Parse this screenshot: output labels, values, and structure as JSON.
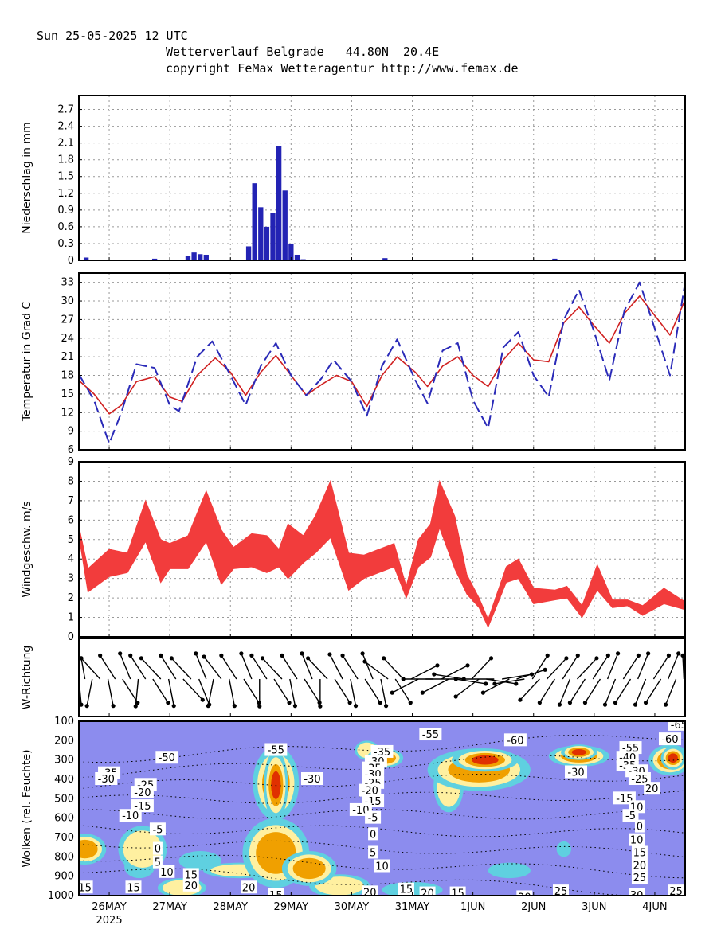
{
  "header": {
    "date_line": "Sun 25-05-2025 12 UTC",
    "location_line": "Wetterverlauf Belgrade   44.80N  20.4E",
    "copyright_line": "copyright FeMax Wetteragentur http://www.femax.de"
  },
  "colors": {
    "precip_bar": "#2323b4",
    "temp_solid": "#d02020",
    "temp_dashed": "#2a2ab8",
    "wind_band": "#f23c3c",
    "cloud_bg": "#8c8cee",
    "cloud_thin": "#5fd0e0",
    "cloud_mid": "#fff0a0",
    "cloud_thick": "#f0a000",
    "cloud_max": "#e03000"
  },
  "x_axis": {
    "tick_labels": [
      "26MAY",
      "27MAY",
      "28MAY",
      "29MAY",
      "30MAY",
      "31MAY",
      "1JUN",
      "2JUN",
      "3JUN",
      "4JUN"
    ],
    "year_label": "2025",
    "range_days": [
      0.5,
      10.5
    ]
  },
  "chart_data": [
    {
      "type": "bar",
      "ylabel": "Niederschlag in mm",
      "yticks": [
        "0",
        "0.3",
        "0.6",
        "0.9",
        "1.2",
        "1.5",
        "1.8",
        "2.1",
        "2.4",
        "2.7"
      ],
      "ylim": [
        0,
        2.95
      ],
      "grid": true,
      "bar_width_days": 0.083,
      "x": [
        0.62,
        1.75,
        2.3,
        2.4,
        2.5,
        2.6,
        3.3,
        3.4,
        3.5,
        3.6,
        3.7,
        3.8,
        3.9,
        4.0,
        4.1,
        4.2,
        5.55,
        8.35
      ],
      "values": [
        0.05,
        0.03,
        0.08,
        0.14,
        0.11,
        0.1,
        0.25,
        1.38,
        0.95,
        0.6,
        0.85,
        2.05,
        1.25,
        0.3,
        0.1,
        0.02,
        0.04,
        0.03
      ]
    },
    {
      "type": "line",
      "ylabel": "Temperatur in Grad C",
      "yticks": [
        "6",
        "9",
        "12",
        "15",
        "18",
        "21",
        "24",
        "27",
        "30",
        "33"
      ],
      "ylim": [
        6,
        34.5
      ],
      "grid": true,
      "series": [
        {
          "style": "solid",
          "points": [
            [
              0.5,
              17.2
            ],
            [
              0.75,
              15
            ],
            [
              1,
              11.8
            ],
            [
              1.2,
              13.2
            ],
            [
              1.45,
              17
            ],
            [
              1.75,
              17.8
            ],
            [
              2,
              14.5
            ],
            [
              2.2,
              13.8
            ],
            [
              2.45,
              18
            ],
            [
              2.75,
              20.8
            ],
            [
              3,
              18.5
            ],
            [
              3.25,
              14.8
            ],
            [
              3.5,
              18.5
            ],
            [
              3.75,
              21.2
            ],
            [
              4,
              18
            ],
            [
              4.25,
              14.8
            ],
            [
              4.5,
              16.5
            ],
            [
              4.75,
              18
            ],
            [
              5,
              17
            ],
            [
              5.25,
              13
            ],
            [
              5.5,
              18
            ],
            [
              5.75,
              21
            ],
            [
              6.05,
              18.5
            ],
            [
              6.25,
              16.2
            ],
            [
              6.5,
              19.5
            ],
            [
              6.75,
              21
            ],
            [
              7,
              18
            ],
            [
              7.25,
              16.2
            ],
            [
              7.5,
              20.5
            ],
            [
              7.75,
              23.2
            ],
            [
              8,
              20.5
            ],
            [
              8.25,
              20.2
            ],
            [
              8.5,
              26.5
            ],
            [
              8.75,
              29
            ],
            [
              9,
              26
            ],
            [
              9.25,
              23.2
            ],
            [
              9.5,
              28
            ],
            [
              9.75,
              30.8
            ],
            [
              10.05,
              27
            ],
            [
              10.25,
              24.5
            ],
            [
              10.5,
              30.2
            ]
          ]
        },
        {
          "style": "dashed",
          "points": [
            [
              0.5,
              18.2
            ],
            [
              0.75,
              14
            ],
            [
              1,
              7
            ],
            [
              1.2,
              12
            ],
            [
              1.45,
              19.8
            ],
            [
              1.75,
              19.2
            ],
            [
              2,
              13.2
            ],
            [
              2.15,
              12.2
            ],
            [
              2.45,
              21
            ],
            [
              2.7,
              23.5
            ],
            [
              3,
              18
            ],
            [
              3.25,
              13.2
            ],
            [
              3.5,
              19.5
            ],
            [
              3.75,
              23.2
            ],
            [
              4,
              18
            ],
            [
              4.25,
              14.8
            ],
            [
              4.5,
              17.5
            ],
            [
              4.7,
              20.5
            ],
            [
              5,
              17
            ],
            [
              5.25,
              11.5
            ],
            [
              5.5,
              19.5
            ],
            [
              5.75,
              23.8
            ],
            [
              6.05,
              17.2
            ],
            [
              6.25,
              13.5
            ],
            [
              6.5,
              22
            ],
            [
              6.75,
              23.2
            ],
            [
              7,
              14
            ],
            [
              7.25,
              9.5
            ],
            [
              7.5,
              22.5
            ],
            [
              7.75,
              25
            ],
            [
              8,
              18
            ],
            [
              8.25,
              14.5
            ],
            [
              8.5,
              27
            ],
            [
              8.75,
              31.8
            ],
            [
              9,
              25
            ],
            [
              9.25,
              17.2
            ],
            [
              9.5,
              28.5
            ],
            [
              9.75,
              33
            ],
            [
              10.05,
              24
            ],
            [
              10.25,
              18
            ],
            [
              10.5,
              33
            ]
          ]
        }
      ]
    },
    {
      "type": "area",
      "ylabel": "Windgeschw. m/s",
      "yticks": [
        "0",
        "1",
        "2",
        "3",
        "4",
        "5",
        "6",
        "7",
        "8",
        "9"
      ],
      "ylim": [
        0,
        9
      ],
      "grid": true,
      "x": [
        0.5,
        0.65,
        1,
        1.3,
        1.6,
        1.85,
        2,
        2.3,
        2.6,
        2.85,
        3.05,
        3.35,
        3.6,
        3.8,
        3.95,
        4.2,
        4.4,
        4.65,
        4.95,
        5.2,
        5.45,
        5.7,
        5.9,
        6.1,
        6.3,
        6.45,
        6.7,
        6.9,
        7.1,
        7.25,
        7.55,
        7.75,
        8,
        8.35,
        8.55,
        8.8,
        9.05,
        9.3,
        9.55,
        9.8,
        10.15,
        10.5
      ],
      "upper": [
        5.7,
        3.5,
        4.5,
        4.3,
        7,
        5,
        4.8,
        5.2,
        7.5,
        5.5,
        4.6,
        5.3,
        5.2,
        4.5,
        5.8,
        5.2,
        6.2,
        8,
        4.3,
        4.2,
        4.5,
        4.8,
        2.6,
        5,
        5.8,
        8,
        6.2,
        3.2,
        2,
        0.9,
        3.6,
        4,
        2.5,
        2.4,
        2.6,
        1.6,
        3.7,
        1.9,
        1.9,
        1.6,
        2.5,
        1.8
      ],
      "lower": [
        5.2,
        2.3,
        3.1,
        3.3,
        4.9,
        2.8,
        3.5,
        3.5,
        4.9,
        2.7,
        3.5,
        3.6,
        3.3,
        3.6,
        3,
        3.8,
        4.3,
        5.1,
        2.4,
        3,
        3.3,
        3.6,
        2,
        3.6,
        4.1,
        5.6,
        3.5,
        2.2,
        1.5,
        0.5,
        2.8,
        3,
        1.7,
        1.9,
        2,
        1,
        2.4,
        1.5,
        1.6,
        1.1,
        1.7,
        1.4
      ]
    },
    {
      "type": "scatter",
      "ylabel": "W-Richtung",
      "arrows": [
        [
          0.5,
          200
        ],
        [
          0.6,
          320
        ],
        [
          0.72,
          190
        ],
        [
          0.85,
          320
        ],
        [
          0.98,
          170
        ],
        [
          1.1,
          330
        ],
        [
          1.22,
          150
        ],
        [
          1.35,
          340
        ],
        [
          1.48,
          185
        ],
        [
          1.6,
          330
        ],
        [
          1.72,
          150
        ],
        [
          1.85,
          320
        ],
        [
          1.98,
          170
        ],
        [
          2.1,
          330
        ],
        [
          2.22,
          140
        ],
        [
          2.35,
          320
        ],
        [
          2.48,
          160
        ],
        [
          2.6,
          340
        ],
        [
          2.72,
          190
        ],
        [
          2.85,
          325
        ],
        [
          2.98,
          170
        ],
        [
          3.1,
          330
        ],
        [
          3.22,
          150
        ],
        [
          3.35,
          340
        ],
        [
          3.48,
          180
        ],
        [
          3.6,
          330
        ],
        [
          3.72,
          150
        ],
        [
          3.85,
          320
        ],
        [
          3.98,
          170
        ],
        [
          4.1,
          330
        ],
        [
          4.22,
          150
        ],
        [
          4.35,
          340
        ],
        [
          4.48,
          180
        ],
        [
          4.6,
          320
        ],
        [
          4.72,
          150
        ],
        [
          4.85,
          335
        ],
        [
          4.98,
          170
        ],
        [
          5.1,
          330
        ],
        [
          5.22,
          150
        ],
        [
          5.35,
          340
        ],
        [
          5.48,
          170
        ],
        [
          5.6,
          310
        ],
        [
          5.72,
          150
        ],
        [
          5.85,
          320
        ],
        [
          5.98,
          60
        ],
        [
          6.1,
          240
        ],
        [
          6.22,
          90
        ],
        [
          6.35,
          270
        ],
        [
          6.48,
          60
        ],
        [
          6.6,
          240
        ],
        [
          6.72,
          100
        ],
        [
          6.85,
          280
        ],
        [
          6.98,
          40
        ],
        [
          7.1,
          230
        ],
        [
          7.22,
          100
        ],
        [
          7.35,
          270
        ],
        [
          7.48,
          80
        ],
        [
          7.6,
          240
        ],
        [
          7.72,
          70
        ],
        [
          7.85,
          260
        ],
        [
          7.98,
          30
        ],
        [
          8.1,
          220
        ],
        [
          8.22,
          40
        ],
        [
          8.35,
          210
        ],
        [
          8.48,
          30
        ],
        [
          8.6,
          200
        ],
        [
          8.72,
          40
        ],
        [
          8.85,
          210
        ],
        [
          8.98,
          30
        ],
        [
          9.1,
          210
        ],
        [
          9.22,
          20
        ],
        [
          9.35,
          200
        ],
        [
          9.48,
          30
        ],
        [
          9.6,
          210
        ],
        [
          9.72,
          20
        ],
        [
          9.85,
          200
        ],
        [
          9.98,
          30
        ],
        [
          10.1,
          210
        ],
        [
          10.22,
          20
        ],
        [
          10.35,
          200
        ],
        [
          10.48,
          30
        ]
      ]
    },
    {
      "type": "heatmap",
      "ylabel": "Wolken (rel. Feuchte)",
      "yticks": [
        "100",
        "200",
        "300",
        "400",
        "500",
        "600",
        "700",
        "800",
        "900",
        "1000"
      ],
      "ylim": [
        100,
        1000
      ],
      "contour_labels": [
        {
          "x": 1.95,
          "p": 290,
          "text": "-50"
        },
        {
          "x": 1.0,
          "p": 370,
          "text": "-35"
        },
        {
          "x": 0.95,
          "p": 400,
          "text": "-30"
        },
        {
          "x": 1.6,
          "p": 430,
          "text": "-25"
        },
        {
          "x": 1.55,
          "p": 470,
          "text": "-20"
        },
        {
          "x": 1.55,
          "p": 540,
          "text": "-15"
        },
        {
          "x": 1.35,
          "p": 590,
          "text": "-10"
        },
        {
          "x": 1.8,
          "p": 660,
          "text": "-5"
        },
        {
          "x": 1.8,
          "p": 760,
          "text": "0"
        },
        {
          "x": 1.8,
          "p": 830,
          "text": "5"
        },
        {
          "x": 1.95,
          "p": 880,
          "text": "10"
        },
        {
          "x": 2.35,
          "p": 895,
          "text": "15"
        },
        {
          "x": 2.35,
          "p": 950,
          "text": "20"
        },
        {
          "x": 0.6,
          "p": 960,
          "text": "15"
        },
        {
          "x": 1.4,
          "p": 960,
          "text": "15"
        },
        {
          "x": 3.3,
          "p": 960,
          "text": "20"
        },
        {
          "x": 3.75,
          "p": 1000,
          "text": "15"
        },
        {
          "x": 3.75,
          "p": 250,
          "text": "-55"
        },
        {
          "x": 4.35,
          "p": 400,
          "text": "-30"
        },
        {
          "x": 5.5,
          "p": 260,
          "text": "-35"
        },
        {
          "x": 5.4,
          "p": 310,
          "text": "-30"
        },
        {
          "x": 5.35,
          "p": 345,
          "text": "-35"
        },
        {
          "x": 5.35,
          "p": 375,
          "text": "-30"
        },
        {
          "x": 5.35,
          "p": 420,
          "text": "-25"
        },
        {
          "x": 5.3,
          "p": 460,
          "text": "-20"
        },
        {
          "x": 5.35,
          "p": 515,
          "text": "-15"
        },
        {
          "x": 5.15,
          "p": 560,
          "text": "-10"
        },
        {
          "x": 5.35,
          "p": 600,
          "text": "-5"
        },
        {
          "x": 5.35,
          "p": 685,
          "text": "0"
        },
        {
          "x": 5.35,
          "p": 780,
          "text": "5"
        },
        {
          "x": 5.5,
          "p": 850,
          "text": "10"
        },
        {
          "x": 5.3,
          "p": 985,
          "text": "20"
        },
        {
          "x": 5.9,
          "p": 970,
          "text": "15"
        },
        {
          "x": 6.25,
          "p": 990,
          "text": "20"
        },
        {
          "x": 6.75,
          "p": 990,
          "text": "15"
        },
        {
          "x": 6.3,
          "p": 170,
          "text": "-55"
        },
        {
          "x": 7.7,
          "p": 200,
          "text": "-60"
        },
        {
          "x": 8.7,
          "p": 365,
          "text": "-30"
        },
        {
          "x": 7.85,
          "p": 1010,
          "text": "20"
        },
        {
          "x": 8.45,
          "p": 980,
          "text": "25"
        },
        {
          "x": 10.25,
          "p": 195,
          "text": "-60"
        },
        {
          "x": 9.6,
          "p": 240,
          "text": "-55"
        },
        {
          "x": 9.55,
          "p": 290,
          "text": "-40"
        },
        {
          "x": 9.55,
          "p": 330,
          "text": "-35"
        },
        {
          "x": 9.7,
          "p": 360,
          "text": "-30"
        },
        {
          "x": 9.75,
          "p": 400,
          "text": "-25"
        },
        {
          "x": 9.95,
          "p": 450,
          "text": "20"
        },
        {
          "x": 9.5,
          "p": 500,
          "text": "-15"
        },
        {
          "x": 9.7,
          "p": 545,
          "text": "10"
        },
        {
          "x": 9.6,
          "p": 590,
          "text": "-5"
        },
        {
          "x": 9.75,
          "p": 645,
          "text": "0"
        },
        {
          "x": 9.7,
          "p": 715,
          "text": "10"
        },
        {
          "x": 9.75,
          "p": 780,
          "text": "15"
        },
        {
          "x": 9.75,
          "p": 845,
          "text": "20"
        },
        {
          "x": 9.75,
          "p": 910,
          "text": "25"
        },
        {
          "x": 9.7,
          "p": 1000,
          "text": "30"
        },
        {
          "x": 10.35,
          "p": 980,
          "text": "25"
        },
        {
          "x": 10.4,
          "p": 120,
          "text": "-65"
        }
      ]
    }
  ]
}
